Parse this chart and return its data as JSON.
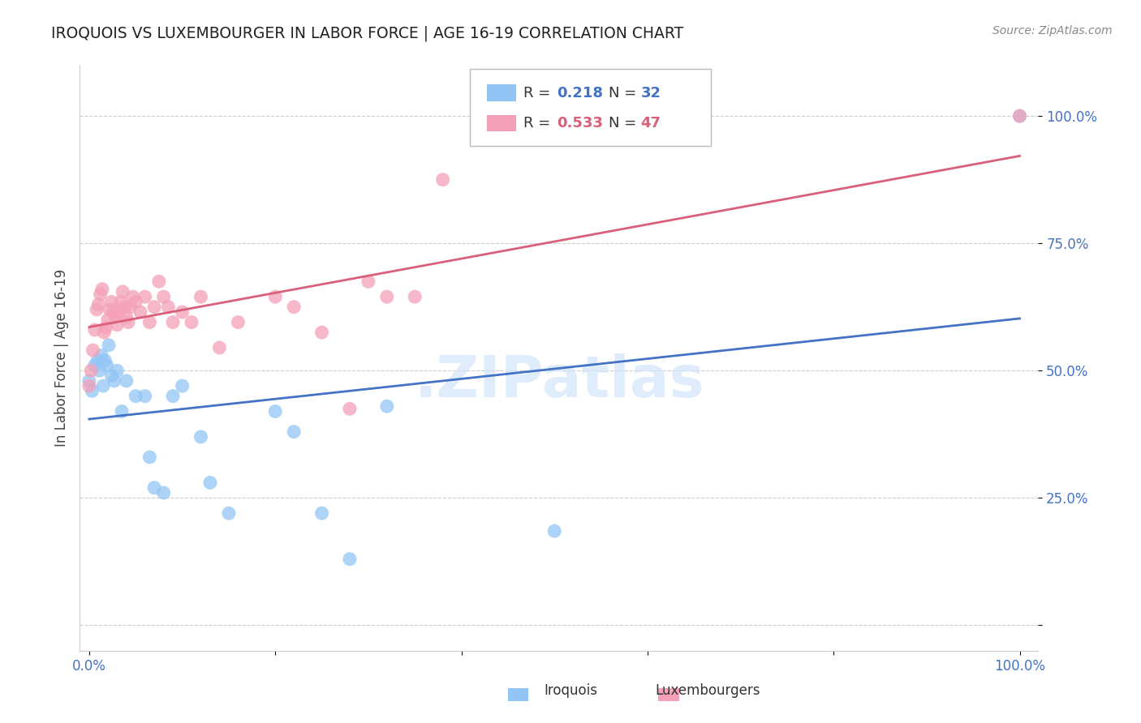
{
  "title": "IROQUOIS VS LUXEMBOURGER IN LABOR FORCE | AGE 16-19 CORRELATION CHART",
  "source": "Source: ZipAtlas.com",
  "ylabel": "In Labor Force | Age 16-19",
  "legend_label1": "Iroquois",
  "legend_label2": "Luxembourgers",
  "R_iroquois": 0.218,
  "N_iroquois": 32,
  "R_luxembourger": 0.533,
  "N_luxembourger": 47,
  "blue_color": "#92C5F5",
  "pink_color": "#F4A0B8",
  "blue_line_color": "#4472C4",
  "pink_line_color": "#D95F7A",
  "watermark_color": "#D0E4FA",
  "background_color": "#FFFFFF",
  "grid_color": "#CCCCCC",
  "iroquois_x": [
    0.0,
    0.003,
    0.006,
    0.009,
    0.011,
    0.013,
    0.015,
    0.017,
    0.019,
    0.021,
    0.024,
    0.027,
    0.03,
    0.035,
    0.04,
    0.05,
    0.06,
    0.065,
    0.07,
    0.08,
    0.09,
    0.1,
    0.12,
    0.13,
    0.15,
    0.2,
    0.22,
    0.25,
    0.28,
    0.32,
    0.5,
    1.0
  ],
  "iroquois_y": [
    0.48,
    0.46,
    0.51,
    0.52,
    0.5,
    0.53,
    0.47,
    0.52,
    0.51,
    0.55,
    0.49,
    0.48,
    0.5,
    0.42,
    0.48,
    0.45,
    0.45,
    0.33,
    0.27,
    0.26,
    0.45,
    0.47,
    0.37,
    0.28,
    0.22,
    0.42,
    0.38,
    0.22,
    0.13,
    0.43,
    0.185,
    1.0
  ],
  "luxembourger_x": [
    0.0,
    0.002,
    0.004,
    0.006,
    0.008,
    0.01,
    0.012,
    0.014,
    0.016,
    0.018,
    0.02,
    0.022,
    0.024,
    0.026,
    0.028,
    0.03,
    0.032,
    0.034,
    0.036,
    0.038,
    0.04,
    0.042,
    0.044,
    0.047,
    0.05,
    0.055,
    0.06,
    0.065,
    0.07,
    0.075,
    0.08,
    0.085,
    0.09,
    0.1,
    0.11,
    0.12,
    0.14,
    0.16,
    0.2,
    0.22,
    0.25,
    0.28,
    0.3,
    0.32,
    0.35,
    0.38,
    1.0
  ],
  "luxembourger_y": [
    0.47,
    0.5,
    0.54,
    0.58,
    0.62,
    0.63,
    0.65,
    0.66,
    0.575,
    0.585,
    0.6,
    0.62,
    0.635,
    0.615,
    0.605,
    0.59,
    0.615,
    0.635,
    0.655,
    0.625,
    0.605,
    0.595,
    0.625,
    0.645,
    0.635,
    0.615,
    0.645,
    0.595,
    0.625,
    0.675,
    0.645,
    0.625,
    0.595,
    0.615,
    0.595,
    0.645,
    0.545,
    0.595,
    0.645,
    0.625,
    0.575,
    0.425,
    0.675,
    0.645,
    0.645,
    0.875,
    1.0
  ],
  "xlim": [
    -0.01,
    1.02
  ],
  "ylim": [
    -0.05,
    1.1
  ]
}
